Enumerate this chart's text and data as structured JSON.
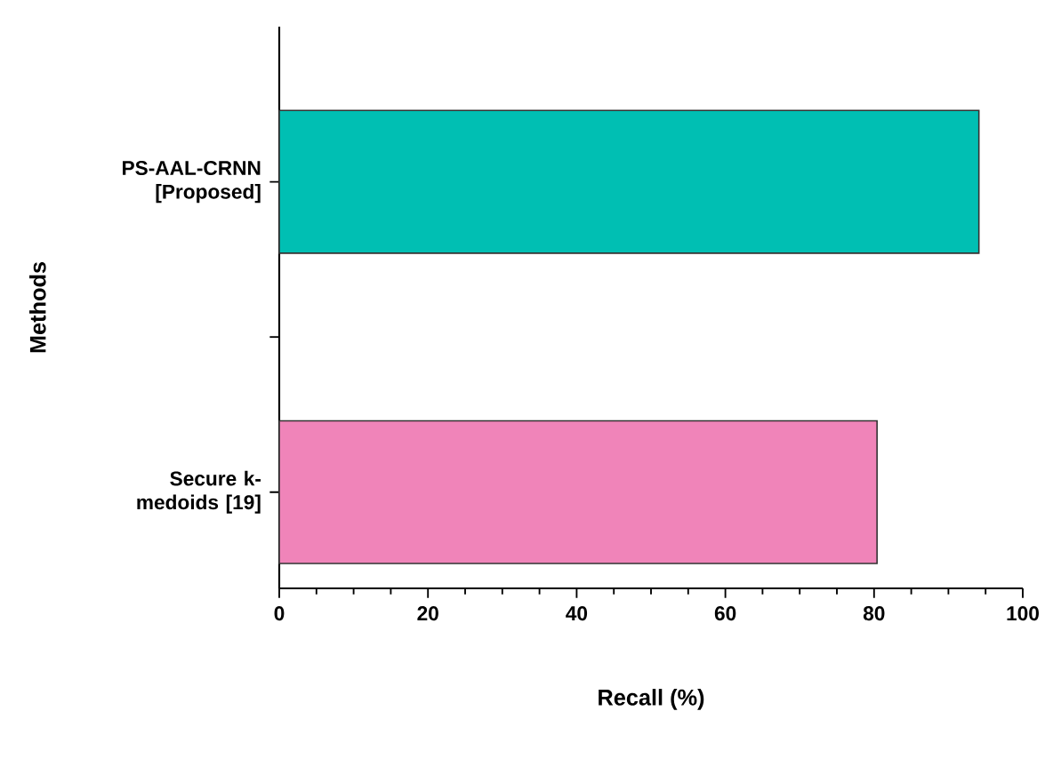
{
  "chart_data": {
    "type": "bar",
    "orientation": "horizontal",
    "categories": [
      "PS-AAL-CRNN [Proposed]",
      "Secure k-medoids [19]"
    ],
    "values": [
      94.1,
      80.4
    ],
    "colors": [
      "#00bfb3",
      "#f084b9"
    ],
    "xlabel": "Recall (%)",
    "ylabel": "Methods",
    "xlim": [
      0,
      100
    ],
    "xticks": [
      0,
      20,
      40,
      60,
      80,
      100
    ]
  }
}
